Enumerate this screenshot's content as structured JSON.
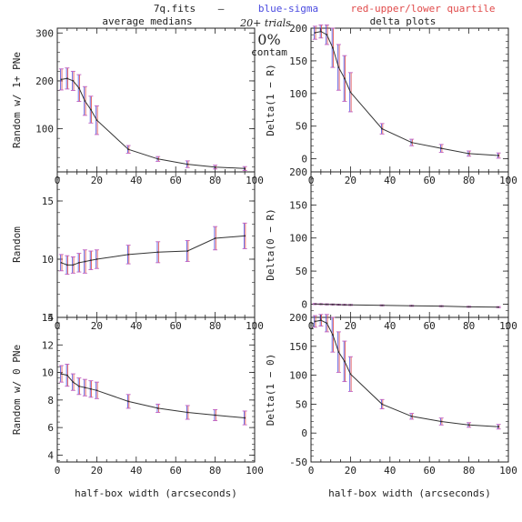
{
  "header": {
    "file": "7q.fits",
    "dash": "—",
    "blue": "blue-sigma",
    "red": "red-upper/lower quartile",
    "trials": "20+ trials",
    "pct": "0%",
    "contam": "contam",
    "left_title": "average medians",
    "right_title": "delta plots"
  },
  "colors": {
    "line": "#333333",
    "blue": "#4a4ae0",
    "red": "#e04a4a",
    "err": "#c060c0",
    "axis": "#222222"
  },
  "chart_data": [
    {
      "type": "line",
      "panel": "top-left",
      "ylabel": "Random w/ 1+ PNe",
      "xlabel": "",
      "xlim": [
        0,
        100
      ],
      "ylim": [
        10,
        310
      ],
      "yticks": [
        100,
        200,
        300
      ],
      "x": [
        2,
        5,
        8,
        11,
        14,
        17,
        20,
        36,
        51,
        66,
        80,
        95
      ],
      "y": [
        203,
        205,
        200,
        185,
        158,
        140,
        118,
        57,
        37,
        26,
        20,
        17
      ],
      "err": [
        22,
        22,
        20,
        28,
        30,
        28,
        30,
        8,
        5,
        7,
        4,
        4
      ]
    },
    {
      "type": "line",
      "panel": "top-right",
      "ylabel": "Delta(1 − R)",
      "xlabel": "",
      "xlim": [
        0,
        100
      ],
      "ylim": [
        -20,
        200
      ],
      "yticks": [
        0,
        50,
        100,
        150,
        200
      ],
      "x": [
        2,
        5,
        8,
        11,
        14,
        17,
        20,
        36,
        51,
        66,
        80,
        95
      ],
      "y": [
        193,
        195,
        190,
        170,
        140,
        123,
        102,
        46,
        25,
        16,
        8,
        5
      ],
      "err": [
        10,
        10,
        15,
        30,
        35,
        35,
        30,
        8,
        5,
        6,
        4,
        4
      ]
    },
    {
      "type": "line",
      "panel": "middle-left",
      "ylabel": "Random",
      "xlabel": "",
      "xlim": [
        0,
        100
      ],
      "ylim": [
        5,
        17.5
      ],
      "yticks": [
        5,
        10,
        15
      ],
      "x": [
        2,
        5,
        8,
        11,
        14,
        17,
        20,
        36,
        51,
        66,
        80,
        95
      ],
      "y": [
        9.7,
        9.5,
        9.5,
        9.7,
        9.8,
        9.9,
        10.0,
        10.4,
        10.6,
        10.7,
        11.8,
        12.0
      ],
      "err": [
        0.7,
        0.8,
        0.7,
        0.8,
        1.0,
        0.8,
        0.8,
        0.8,
        0.9,
        0.9,
        1.0,
        1.1
      ]
    },
    {
      "type": "line",
      "panel": "middle-right",
      "ylabel": "Delta(0 − R)",
      "xlabel": "",
      "xlim": [
        0,
        100
      ],
      "ylim": [
        -20,
        200
      ],
      "yticks": [
        0,
        50,
        100,
        150,
        200
      ],
      "x": [
        2,
        5,
        8,
        11,
        14,
        17,
        20,
        36,
        51,
        66,
        80,
        95
      ],
      "y": [
        0.2,
        0,
        -0.3,
        -0.5,
        -0.8,
        -1.0,
        -1.2,
        -1.8,
        -2.5,
        -3.0,
        -4.0,
        -4.5
      ],
      "err": [
        0.8,
        0.8,
        0.8,
        0.8,
        0.8,
        0.8,
        0.8,
        0.8,
        0.8,
        0.8,
        0.8,
        0.8
      ]
    },
    {
      "type": "line",
      "panel": "bottom-left",
      "ylabel": "Random w/ 0 PNe",
      "xlabel": "half-box width (arcseconds)",
      "xlim": [
        0,
        100
      ],
      "ylim": [
        3.5,
        14
      ],
      "yticks": [
        4,
        6,
        8,
        10,
        12,
        14
      ],
      "x": [
        2,
        5,
        8,
        11,
        14,
        17,
        20,
        36,
        51,
        66,
        80,
        95
      ],
      "y": [
        9.9,
        9.8,
        9.3,
        9.0,
        8.9,
        8.8,
        8.7,
        7.9,
        7.4,
        7.1,
        6.9,
        6.7
      ],
      "err": [
        0.6,
        0.8,
        0.6,
        0.6,
        0.6,
        0.6,
        0.6,
        0.5,
        0.3,
        0.5,
        0.4,
        0.5
      ]
    },
    {
      "type": "line",
      "panel": "bottom-right",
      "ylabel": "Delta(1 − 0)",
      "xlabel": "half-box width (arcseconds)",
      "xlim": [
        0,
        100
      ],
      "ylim": [
        -50,
        200
      ],
      "yticks": [
        -50,
        0,
        50,
        100,
        150,
        200
      ],
      "x": [
        2,
        5,
        8,
        11,
        14,
        17,
        20,
        36,
        51,
        66,
        80,
        95
      ],
      "y": [
        193,
        195,
        190,
        170,
        140,
        124,
        102,
        50,
        29,
        20,
        14,
        11
      ],
      "err": [
        10,
        10,
        15,
        30,
        35,
        35,
        30,
        8,
        5,
        6,
        4,
        4
      ]
    }
  ]
}
